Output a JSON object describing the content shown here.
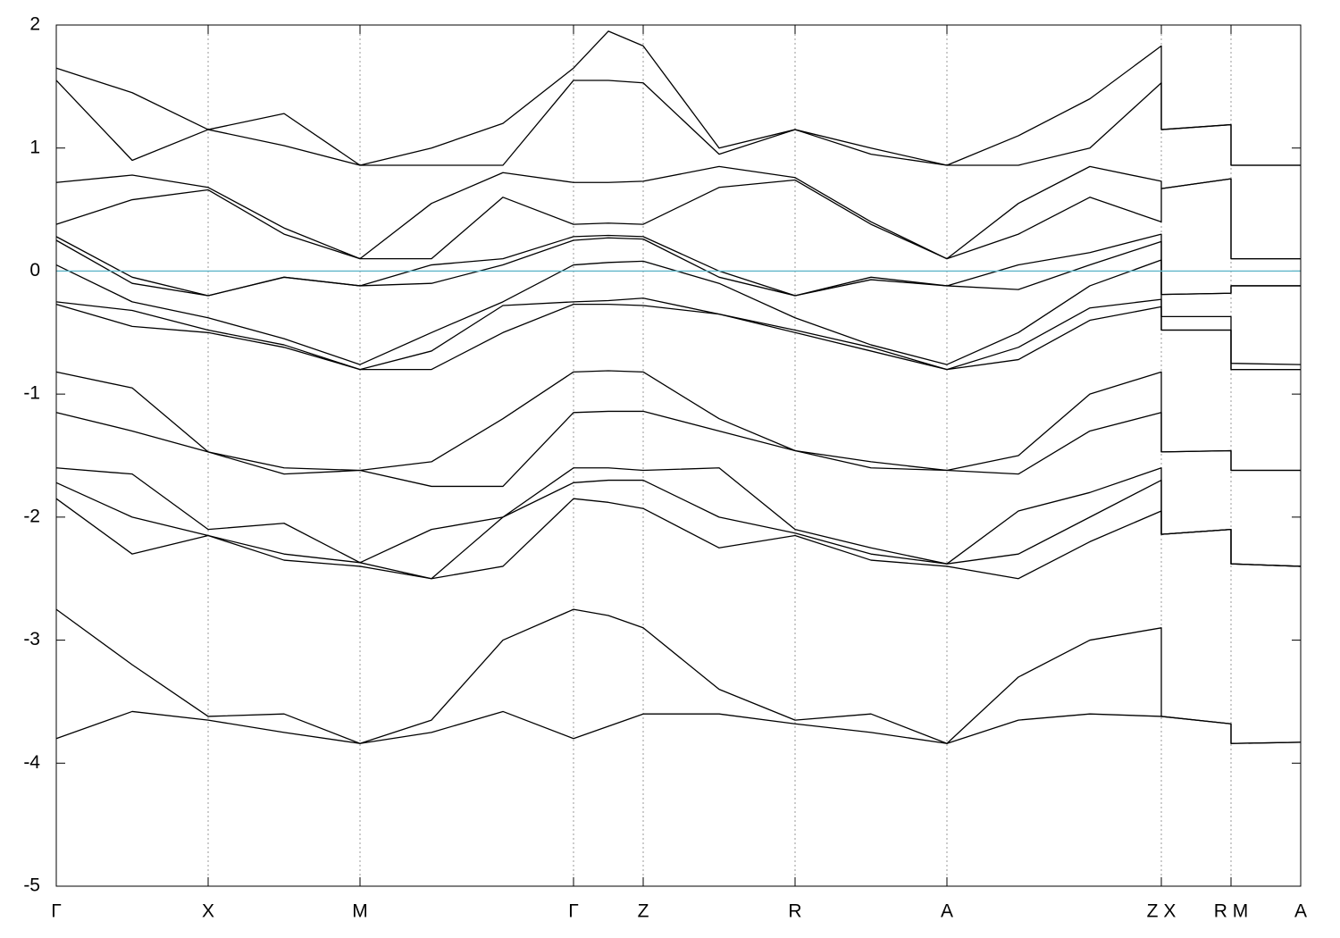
{
  "chart_data": {
    "type": "line",
    "x": [
      0,
      0.85,
      1.7,
      2.55,
      3.4,
      4.2,
      5.0,
      5.79,
      6.18,
      6.57,
      7.42,
      8.27,
      9.12,
      9.97,
      10.77,
      11.57,
      12.37,
      12.37,
      13.15,
      13.15,
      13.93
    ],
    "xlim": [
      0,
      13.93
    ],
    "xticks": [
      {
        "value": 0,
        "label": "Γ"
      },
      {
        "value": 1.7,
        "label": "X"
      },
      {
        "value": 3.4,
        "label": "M"
      },
      {
        "value": 5.79,
        "label": "Γ"
      },
      {
        "value": 6.57,
        "label": "Z"
      },
      {
        "value": 8.27,
        "label": "R"
      },
      {
        "value": 9.97,
        "label": "A"
      },
      {
        "value": 12.37,
        "label": "Z X"
      },
      {
        "value": 13.15,
        "label": "R M"
      },
      {
        "value": 13.93,
        "label": "A"
      }
    ],
    "ylim": [
      -5,
      2
    ],
    "yticks": [
      -5,
      -4,
      -3,
      -2,
      -1,
      0,
      1,
      2
    ],
    "grid": true,
    "fermi_level": 0,
    "fermi_color": "#5fb6c9",
    "series": [
      {
        "color": "#000000",
        "values": [
          1.65,
          1.45,
          1.15,
          1.28,
          0.86,
          1.0,
          1.2,
          1.65,
          1.95,
          1.83,
          1.0,
          1.15,
          1.0,
          0.86,
          1.1,
          1.4,
          1.83,
          1.15,
          1.19,
          0.86,
          0.86
        ]
      },
      {
        "color": "#000000",
        "values": [
          1.55,
          0.9,
          1.15,
          1.02,
          0.86,
          0.86,
          0.86,
          1.55,
          1.55,
          1.53,
          0.95,
          1.15,
          0.95,
          0.86,
          0.86,
          1.0,
          1.53,
          1.15,
          1.19,
          0.86,
          0.86
        ]
      },
      {
        "color": "#000000",
        "values": [
          0.72,
          0.78,
          0.68,
          0.35,
          0.1,
          0.55,
          0.8,
          0.72,
          0.72,
          0.73,
          0.85,
          0.76,
          0.4,
          0.1,
          0.55,
          0.85,
          0.73,
          0.67,
          0.75,
          0.1,
          0.1
        ]
      },
      {
        "color": "#000000",
        "values": [
          0.38,
          0.58,
          0.66,
          0.3,
          0.1,
          0.1,
          0.6,
          0.38,
          0.39,
          0.38,
          0.68,
          0.74,
          0.38,
          0.1,
          0.3,
          0.6,
          0.4,
          0.67,
          0.75,
          0.1,
          0.1
        ]
      },
      {
        "color": "#000000",
        "values": [
          0.28,
          -0.05,
          -0.2,
          -0.05,
          -0.12,
          0.05,
          0.1,
          0.28,
          0.29,
          0.28,
          0.0,
          -0.2,
          -0.05,
          -0.12,
          0.05,
          0.15,
          0.3,
          -0.19,
          -0.18,
          -0.12,
          -0.12
        ]
      },
      {
        "color": "#000000",
        "values": [
          0.25,
          -0.1,
          -0.2,
          -0.05,
          -0.12,
          -0.1,
          0.05,
          0.25,
          0.27,
          0.26,
          -0.05,
          -0.2,
          -0.07,
          -0.12,
          -0.15,
          0.05,
          0.24,
          -0.19,
          -0.18,
          -0.12,
          -0.12
        ]
      },
      {
        "color": "#000000",
        "values": [
          0.05,
          -0.25,
          -0.38,
          -0.55,
          -0.76,
          -0.5,
          -0.25,
          0.05,
          0.07,
          0.08,
          -0.1,
          -0.38,
          -0.6,
          -0.76,
          -0.5,
          -0.12,
          0.09,
          -0.37,
          -0.37,
          -0.75,
          -0.76
        ]
      },
      {
        "color": "#000000",
        "values": [
          -0.25,
          -0.32,
          -0.48,
          -0.6,
          -0.8,
          -0.65,
          -0.28,
          -0.25,
          -0.24,
          -0.22,
          -0.35,
          -0.48,
          -0.62,
          -0.8,
          -0.62,
          -0.3,
          -0.23,
          -0.48,
          -0.48,
          -0.8,
          -0.8
        ]
      },
      {
        "color": "#000000",
        "values": [
          -0.27,
          -0.45,
          -0.5,
          -0.62,
          -0.8,
          -0.8,
          -0.5,
          -0.27,
          -0.27,
          -0.28,
          -0.35,
          -0.5,
          -0.65,
          -0.8,
          -0.72,
          -0.4,
          -0.29,
          -0.48,
          -0.48,
          -0.8,
          -0.8
        ]
      },
      {
        "color": "#000000",
        "values": [
          -0.82,
          -0.95,
          -1.47,
          -1.6,
          -1.62,
          -1.55,
          -1.2,
          -0.82,
          -0.81,
          -0.82,
          -1.2,
          -1.46,
          -1.55,
          -1.62,
          -1.5,
          -1.0,
          -0.82,
          -1.47,
          -1.46,
          -1.62,
          -1.62
        ]
      },
      {
        "color": "#000000",
        "values": [
          -1.15,
          -1.3,
          -1.47,
          -1.65,
          -1.62,
          -1.75,
          -1.75,
          -1.15,
          -1.14,
          -1.14,
          -1.3,
          -1.46,
          -1.6,
          -1.62,
          -1.65,
          -1.3,
          -1.15,
          -1.47,
          -1.46,
          -1.62,
          -1.62
        ]
      },
      {
        "color": "#000000",
        "values": [
          -1.6,
          -1.65,
          -2.1,
          -2.05,
          -2.37,
          -2.1,
          -2.0,
          -1.6,
          -1.6,
          -1.62,
          -1.6,
          -2.1,
          -2.25,
          -2.38,
          -1.95,
          -1.8,
          -1.6,
          -2.14,
          -2.1,
          -2.38,
          -2.4
        ]
      },
      {
        "color": "#000000",
        "values": [
          -1.72,
          -2.0,
          -2.15,
          -2.3,
          -2.37,
          -2.5,
          -2.0,
          -1.72,
          -1.7,
          -1.7,
          -2.0,
          -2.13,
          -2.3,
          -2.38,
          -2.3,
          -2.0,
          -1.7,
          -2.14,
          -2.1,
          -2.38,
          -2.4
        ]
      },
      {
        "color": "#000000",
        "values": [
          -1.85,
          -2.3,
          -2.15,
          -2.35,
          -2.4,
          -2.5,
          -2.4,
          -1.85,
          -1.88,
          -1.93,
          -2.25,
          -2.15,
          -2.35,
          -2.4,
          -2.5,
          -2.2,
          -1.95,
          -2.14,
          -2.1,
          -2.38,
          -2.4
        ]
      },
      {
        "color": "#000000",
        "values": [
          -2.75,
          -3.2,
          -3.62,
          -3.6,
          -3.84,
          -3.65,
          -3.0,
          -2.75,
          -2.8,
          -2.9,
          -3.4,
          -3.65,
          -3.6,
          -3.84,
          -3.3,
          -3.0,
          -2.9,
          -3.62,
          -3.68,
          -3.84,
          -3.83
        ]
      },
      {
        "color": "#000000",
        "values": [
          -3.8,
          -3.58,
          -3.65,
          -3.75,
          -3.84,
          -3.75,
          -3.58,
          -3.8,
          -3.7,
          -3.6,
          -3.6,
          -3.68,
          -3.75,
          -3.84,
          -3.65,
          -3.6,
          -3.62,
          -3.62,
          -3.68,
          -3.84,
          -3.83
        ]
      }
    ]
  }
}
